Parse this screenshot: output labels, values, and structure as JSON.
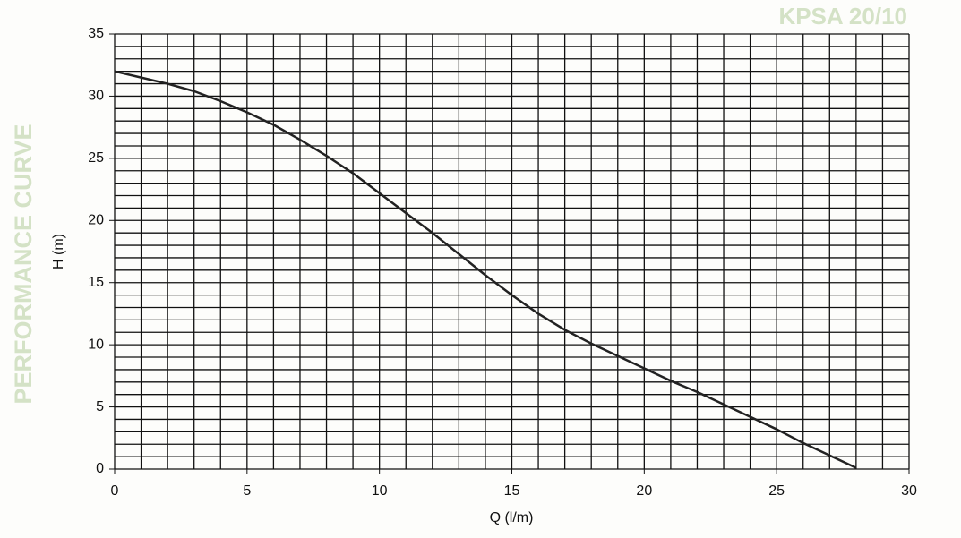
{
  "chart_data": {
    "type": "line",
    "title": "KPSA 20/10",
    "side_label": "PERFORMANCE CURVE",
    "x_label": "Q (l/m)",
    "y_label": "H (m)",
    "x": [
      0,
      1,
      2,
      3,
      4,
      5,
      6,
      7,
      8,
      9,
      10,
      11,
      12,
      13,
      14,
      15,
      16,
      17,
      18,
      19,
      20,
      21,
      22,
      23,
      24,
      25,
      26,
      27,
      28
    ],
    "series": [
      {
        "color": "#222222",
        "values": [
          32,
          31.5,
          31,
          30.4,
          29.6,
          28.7,
          27.7,
          26.5,
          25.2,
          23.8,
          22.2,
          20.6,
          19,
          17.3,
          15.6,
          14,
          12.5,
          11.2,
          10.1,
          9.1,
          8.1,
          7.1,
          6.2,
          5.2,
          4.2,
          3.2,
          2.1,
          1.1,
          0.1
        ]
      }
    ],
    "xlim": [
      0,
      30
    ],
    "ylim": [
      0,
      35
    ],
    "xticks": [
      0,
      5,
      10,
      15,
      20,
      25,
      30
    ],
    "yticks": [
      0,
      5,
      10,
      15,
      20,
      25,
      30,
      35
    ],
    "x_grid": [
      0,
      1,
      2,
      3,
      4,
      5,
      6,
      7,
      8,
      9,
      10,
      11,
      12,
      13,
      14,
      15,
      16,
      17,
      18,
      19,
      20,
      21,
      22,
      23,
      24,
      25,
      26,
      27,
      28,
      29,
      30
    ],
    "y_grid": [
      0,
      1,
      2,
      3,
      4,
      5,
      6,
      7,
      8,
      9,
      10,
      11,
      12,
      13,
      14,
      15,
      16,
      17,
      18,
      19,
      20,
      21,
      22,
      23,
      24,
      25,
      26,
      27,
      28,
      29,
      30,
      31,
      32,
      33,
      34,
      35
    ],
    "grid": true
  }
}
